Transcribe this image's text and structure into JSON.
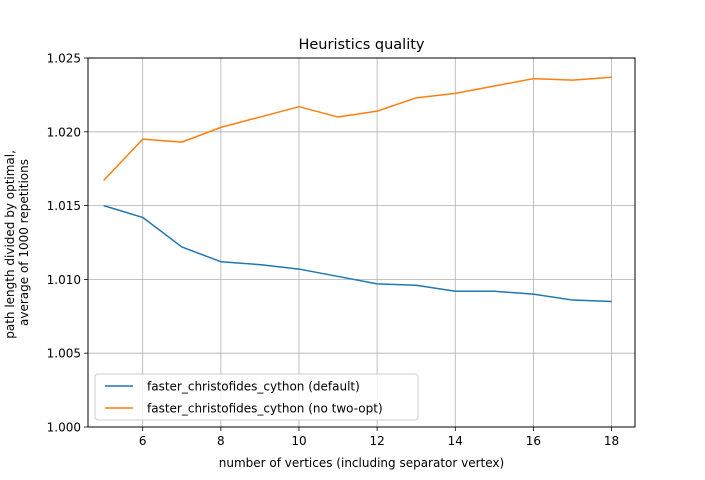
{
  "chart_data": {
    "type": "line",
    "title": "Heuristics quality",
    "xlabel": "number of vertices (including separator vertex)",
    "ylabel": [
      "path length divided by optimal,",
      "average of 1000 repetitions"
    ],
    "xlim": [
      4.6,
      18.6
    ],
    "ylim": [
      1.0,
      1.025
    ],
    "xticks": [
      6,
      8,
      10,
      12,
      14,
      16,
      18
    ],
    "xtick_labels": [
      "6",
      "8",
      "10",
      "12",
      "14",
      "16",
      "18"
    ],
    "yticks": [
      1.0,
      1.005,
      1.01,
      1.015,
      1.02,
      1.025
    ],
    "ytick_labels": [
      "1.000",
      "1.005",
      "1.010",
      "1.015",
      "1.020",
      "1.025"
    ],
    "grid": true,
    "legend_position": "lower-left",
    "x": [
      5,
      6,
      7,
      8,
      9,
      10,
      11,
      12,
      13,
      14,
      15,
      16,
      17,
      18
    ],
    "series": [
      {
        "name": "faster_christofides_cython (default)",
        "color": "#1f77b4",
        "values": [
          1.015,
          1.0142,
          1.0122,
          1.0112,
          1.011,
          1.0107,
          1.0102,
          1.0097,
          1.0096,
          1.0092,
          1.0092,
          1.009,
          1.0086,
          1.0085
        ]
      },
      {
        "name": "faster_christofides_cython (no two-opt)",
        "color": "#ff7f0e",
        "values": [
          1.0167,
          1.0195,
          1.0193,
          1.0203,
          1.021,
          1.0217,
          1.021,
          1.0214,
          1.0223,
          1.0226,
          1.0231,
          1.0236,
          1.0235,
          1.0237
        ]
      }
    ]
  }
}
